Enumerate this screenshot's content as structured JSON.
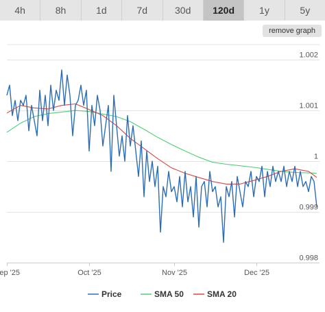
{
  "tabs": [
    "4h",
    "8h",
    "1d",
    "7d",
    "30d",
    "120d",
    "1y",
    "5y"
  ],
  "active_tab": "120d",
  "remove_button": "remove graph",
  "colors": {
    "price": "#2a6cb5",
    "sma50": "#4ccf73",
    "sma20": "#e0433b"
  },
  "chart_data": {
    "type": "line",
    "ylim": [
      0.998,
      1.0023
    ],
    "xlim": [
      0,
      114
    ],
    "grid": true,
    "legend_position": "bottom",
    "y_ticks": [
      {
        "value": 1.002,
        "label": "1.002"
      },
      {
        "value": 1.001,
        "label": "1.001"
      },
      {
        "value": 1.0,
        "label": "1"
      },
      {
        "value": 0.999,
        "label": "0.999"
      },
      {
        "value": 0.998,
        "label": "0.998"
      }
    ],
    "x_ticks": [
      {
        "value": 0,
        "label": "Sep '25"
      },
      {
        "value": 30,
        "label": "Oct '25"
      },
      {
        "value": 61,
        "label": "Nov '25"
      },
      {
        "value": 91,
        "label": "Dec '25"
      }
    ],
    "series": [
      {
        "name": "Price",
        "x": [
          0,
          1,
          2,
          3,
          4,
          5,
          6,
          7,
          8,
          9,
          10,
          11,
          12,
          13,
          14,
          15,
          16,
          17,
          18,
          19,
          20,
          21,
          22,
          23,
          24,
          25,
          26,
          27,
          28,
          29,
          30,
          31,
          32,
          33,
          34,
          35,
          36,
          37,
          38,
          39,
          40,
          41,
          42,
          43,
          44,
          45,
          46,
          47,
          48,
          49,
          50,
          51,
          52,
          53,
          54,
          55,
          56,
          57,
          58,
          59,
          60,
          61,
          62,
          63,
          64,
          65,
          66,
          67,
          68,
          69,
          70,
          71,
          72,
          73,
          74,
          75,
          76,
          77,
          78,
          79,
          80,
          81,
          82,
          83,
          84,
          85,
          86,
          87,
          88,
          89,
          90,
          91,
          92,
          93,
          94,
          95,
          96,
          97,
          98,
          99,
          100,
          101,
          102,
          103,
          104,
          105,
          106,
          107,
          108,
          109,
          110,
          111,
          112,
          113
        ],
        "values": [
          1.0013,
          1.0015,
          1.0009,
          1.0012,
          1.0008,
          1.0012,
          1.0011,
          1.0013,
          1.0006,
          1.0011,
          1.0008,
          1.0005,
          1.0014,
          1.0008,
          1.0013,
          1.0007,
          1.0015,
          1.001,
          1.0014,
          1.0012,
          1.0018,
          1.0011,
          1.0017,
          1.0013,
          1.0005,
          1.0011,
          1.0012,
          1.0015,
          1.0011,
          1.0014,
          1.0002,
          1.0011,
          1.0007,
          1.0013,
          1.001,
          1.0003,
          1.0007,
          1.0011,
          0.9998,
          1.0013,
          1.0007,
          1.0001,
          1.0005,
          1.0,
          1.0009,
          1.0003,
          1.0007,
          1.0002,
          0.9997,
          1.0004,
          0.9993,
          1.0002,
          0.9996,
          1.0,
          0.9995,
          0.9999,
          0.9986,
          0.9995,
          0.9993,
          0.9998,
          0.9994,
          0.9995,
          0.9992,
          0.9997,
          0.9991,
          0.9998,
          0.9992,
          0.9995,
          0.9989,
          0.9997,
          0.9987,
          0.9995,
          0.9996,
          0.9991,
          0.9998,
          0.9994,
          0.9995,
          0.9991,
          0.9993,
          0.9984,
          0.9995,
          0.9993,
          0.9996,
          0.9989,
          0.9997,
          0.9994,
          0.9991,
          0.9996,
          0.9995,
          0.9998,
          0.9993,
          0.9997,
          0.9996,
          0.9999,
          0.9993,
          0.9998,
          0.9995,
          0.9999,
          0.9996,
          0.9998,
          0.9996,
          0.9999,
          0.9995,
          0.9998,
          0.9996,
          0.9999,
          0.9995,
          0.9998,
          0.9995,
          0.9996,
          0.9994,
          0.9997,
          0.9996,
          0.9991
        ]
      },
      {
        "name": "SMA 50",
        "x": [
          0,
          5,
          10,
          15,
          20,
          25,
          30,
          35,
          40,
          45,
          50,
          55,
          60,
          65,
          70,
          75,
          80,
          85,
          90,
          95,
          100,
          105,
          110,
          113
        ],
        "values": [
          1.00057,
          1.00075,
          1.00088,
          1.00094,
          1.00097,
          1.001,
          1.00098,
          1.00093,
          1.00088,
          1.00078,
          1.00063,
          1.00047,
          1.00033,
          1.0002,
          1.00008,
          0.99998,
          0.99994,
          0.99991,
          0.99988,
          0.99984,
          0.9998,
          0.99978,
          0.99977,
          0.99976
        ]
      },
      {
        "name": "SMA 20",
        "x": [
          0,
          5,
          10,
          15,
          20,
          25,
          30,
          35,
          40,
          45,
          50,
          55,
          60,
          65,
          70,
          75,
          80,
          85,
          90,
          95,
          100,
          105,
          110,
          113
        ],
        "values": [
          1.00095,
          1.0011,
          1.00105,
          1.00103,
          1.0011,
          1.00113,
          1.00102,
          1.0009,
          1.0007,
          1.00045,
          1.00025,
          1.00005,
          0.99987,
          0.99976,
          0.99968,
          0.9996,
          0.99955,
          0.99955,
          0.99962,
          0.9997,
          0.9998,
          0.99985,
          0.9998,
          0.99968
        ]
      }
    ]
  }
}
